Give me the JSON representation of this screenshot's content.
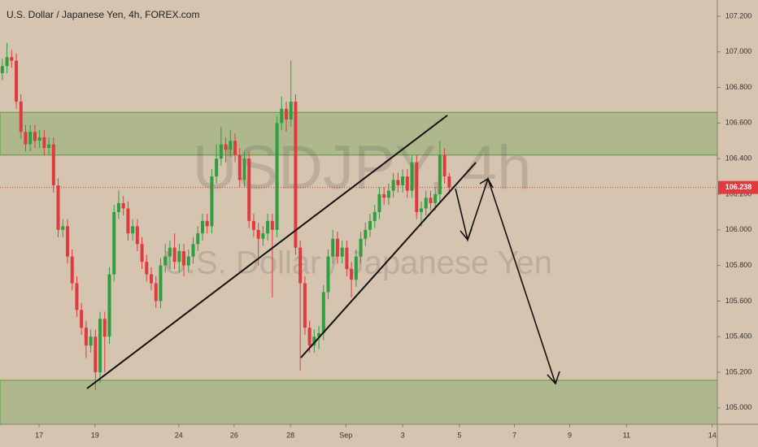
{
  "chart_data": {
    "type": "candlestick",
    "title": "U.S. Dollar / Japanese Yen, 4h, FOREX.com",
    "watermark": "USDJPY, 4h",
    "watermark_subtitle": "U.S. Dollar / Japanese Yen",
    "up_color": "#2e9e3e",
    "down_color": "#e0393e",
    "zone_color": "#5a9a3c",
    "ylim": [
      104.908,
      107.291
    ],
    "yticks": [
      {
        "value": 105.0,
        "label": "105.000"
      },
      {
        "value": 105.2,
        "label": "105.200"
      },
      {
        "value": 105.4,
        "label": "105.400"
      },
      {
        "value": 105.6,
        "label": "105.600"
      },
      {
        "value": 105.8,
        "label": "105.800"
      },
      {
        "value": 106.0,
        "label": "106.000"
      },
      {
        "value": 106.2,
        "label": "106.200"
      },
      {
        "value": 106.4,
        "label": "106.400"
      },
      {
        "value": 106.6,
        "label": "106.600"
      },
      {
        "value": 106.8,
        "label": "106.800"
      },
      {
        "value": 107.0,
        "label": "107.000"
      },
      {
        "value": 107.2,
        "label": "107.200"
      }
    ],
    "xlim": [
      -0.5,
      153.6
    ],
    "xticks": [
      {
        "value": 7.9,
        "label": "17"
      },
      {
        "value": 19.9,
        "label": "19"
      },
      {
        "value": 37.9,
        "label": "24"
      },
      {
        "value": 49.8,
        "label": "26"
      },
      {
        "value": 61.9,
        "label": "28"
      },
      {
        "value": 73.8,
        "label": "Sep"
      },
      {
        "value": 86.0,
        "label": "3"
      },
      {
        "value": 98.2,
        "label": "5"
      },
      {
        "value": 110.0,
        "label": "7"
      },
      {
        "value": 121.9,
        "label": "9"
      },
      {
        "value": 134.1,
        "label": "11"
      },
      {
        "value": 152.5,
        "label": "14"
      }
    ],
    "last_price": 106.238,
    "zones": [
      [
        106.42,
        106.66
      ],
      [
        104.908,
        105.155
      ]
    ],
    "ohlc": [
      [
        106.88,
        106.96,
        106.84,
        106.92
      ],
      [
        106.92,
        107.05,
        106.88,
        106.97
      ],
      [
        106.97,
        107.01,
        106.91,
        106.95
      ],
      [
        106.95,
        106.99,
        106.68,
        106.72
      ],
      [
        106.72,
        106.76,
        106.51,
        106.55
      ],
      [
        106.55,
        106.59,
        106.44,
        106.48
      ],
      [
        106.48,
        106.59,
        106.44,
        106.55
      ],
      [
        106.55,
        106.59,
        106.46,
        106.5
      ],
      [
        106.5,
        106.56,
        106.46,
        106.52
      ],
      [
        106.52,
        106.56,
        106.42,
        106.46
      ],
      [
        106.46,
        106.52,
        106.42,
        106.48
      ],
      [
        106.48,
        106.52,
        106.21,
        106.25
      ],
      [
        106.25,
        106.29,
        105.96,
        106.0
      ],
      [
        106.0,
        106.06,
        105.96,
        106.02
      ],
      [
        106.02,
        106.06,
        105.81,
        105.85
      ],
      [
        105.85,
        105.89,
        105.66,
        105.7
      ],
      [
        105.7,
        105.74,
        105.51,
        105.55
      ],
      [
        105.55,
        105.59,
        105.41,
        105.45
      ],
      [
        105.45,
        105.49,
        105.28,
        105.35
      ],
      [
        105.35,
        105.44,
        105.31,
        105.4
      ],
      [
        105.4,
        105.44,
        105.1,
        105.2
      ],
      [
        105.2,
        105.54,
        105.14,
        105.5
      ],
      [
        105.5,
        105.54,
        105.2,
        105.4
      ],
      [
        105.4,
        105.79,
        105.36,
        105.75
      ],
      [
        105.75,
        106.14,
        105.71,
        106.1
      ],
      [
        106.1,
        106.22,
        106.06,
        106.15
      ],
      [
        106.15,
        106.19,
        106.08,
        106.12
      ],
      [
        106.12,
        106.16,
        105.94,
        105.98
      ],
      [
        105.98,
        106.06,
        105.94,
        106.02
      ],
      [
        106.02,
        106.06,
        105.88,
        105.92
      ],
      [
        105.92,
        105.96,
        105.78,
        105.82
      ],
      [
        105.82,
        105.86,
        105.71,
        105.75
      ],
      [
        105.75,
        105.79,
        105.66,
        105.7
      ],
      [
        105.7,
        105.74,
        105.56,
        105.6
      ],
      [
        105.6,
        105.84,
        105.56,
        105.8
      ],
      [
        105.8,
        105.92,
        105.76,
        105.85
      ],
      [
        105.85,
        105.94,
        105.78,
        105.9
      ],
      [
        105.9,
        105.98,
        105.78,
        105.82
      ],
      [
        105.82,
        105.92,
        105.76,
        105.88
      ],
      [
        105.88,
        105.92,
        105.74,
        105.8
      ],
      [
        105.8,
        105.89,
        105.76,
        105.85
      ],
      [
        105.85,
        105.96,
        105.81,
        105.92
      ],
      [
        105.92,
        106.02,
        105.88,
        105.98
      ],
      [
        105.98,
        106.09,
        105.94,
        106.05
      ],
      [
        106.05,
        106.09,
        105.98,
        106.02
      ],
      [
        106.02,
        106.34,
        105.98,
        106.3
      ],
      [
        106.3,
        106.48,
        106.26,
        106.4
      ],
      [
        106.4,
        106.58,
        106.36,
        106.48
      ],
      [
        106.48,
        106.52,
        106.38,
        106.45
      ],
      [
        106.45,
        106.56,
        106.41,
        106.5
      ],
      [
        106.5,
        106.54,
        106.38,
        106.42
      ],
      [
        106.42,
        106.46,
        106.24,
        106.28
      ],
      [
        106.28,
        106.44,
        106.24,
        106.4
      ],
      [
        106.4,
        106.44,
        106.01,
        106.05
      ],
      [
        106.05,
        106.09,
        105.96,
        106.0
      ],
      [
        106.0,
        106.04,
        105.8,
        105.95
      ],
      [
        105.95,
        106.02,
        105.91,
        105.98
      ],
      [
        105.98,
        106.09,
        105.94,
        106.05
      ],
      [
        106.05,
        106.09,
        105.62,
        106.0
      ],
      [
        106.0,
        106.64,
        105.96,
        106.6
      ],
      [
        106.6,
        106.75,
        106.56,
        106.68
      ],
      [
        106.68,
        106.72,
        106.55,
        106.62
      ],
      [
        106.62,
        106.95,
        106.58,
        106.72
      ],
      [
        106.72,
        106.76,
        105.86,
        105.9
      ],
      [
        105.9,
        105.94,
        105.21,
        105.7
      ],
      [
        105.7,
        105.74,
        105.41,
        105.45
      ],
      [
        105.45,
        105.49,
        105.31,
        105.35
      ],
      [
        105.35,
        105.44,
        105.31,
        105.4
      ],
      [
        105.4,
        105.46,
        105.33,
        105.42
      ],
      [
        105.42,
        105.69,
        105.38,
        105.65
      ],
      [
        105.65,
        105.89,
        105.61,
        105.85
      ],
      [
        105.85,
        106.0,
        105.81,
        105.95
      ],
      [
        105.95,
        105.99,
        105.81,
        105.85
      ],
      [
        105.85,
        105.94,
        105.81,
        105.9
      ],
      [
        105.9,
        105.94,
        105.74,
        105.78
      ],
      [
        105.78,
        105.82,
        105.62,
        105.72
      ],
      [
        105.72,
        105.89,
        105.68,
        105.85
      ],
      [
        105.85,
        105.99,
        105.81,
        105.95
      ],
      [
        105.95,
        106.04,
        105.91,
        106.0
      ],
      [
        106.0,
        106.09,
        105.96,
        106.05
      ],
      [
        106.05,
        106.14,
        106.01,
        106.1
      ],
      [
        106.1,
        106.24,
        106.06,
        106.2
      ],
      [
        106.2,
        106.24,
        106.14,
        106.18
      ],
      [
        106.18,
        106.26,
        106.14,
        106.22
      ],
      [
        106.22,
        106.32,
        106.18,
        106.28
      ],
      [
        106.28,
        106.32,
        106.21,
        106.25
      ],
      [
        106.25,
        106.34,
        106.21,
        106.3
      ],
      [
        106.3,
        106.34,
        106.18,
        106.22
      ],
      [
        106.22,
        106.42,
        106.18,
        106.38
      ],
      [
        106.38,
        106.42,
        106.06,
        106.1
      ],
      [
        106.1,
        106.16,
        106.02,
        106.12
      ],
      [
        106.12,
        106.22,
        106.08,
        106.18
      ],
      [
        106.18,
        106.22,
        106.11,
        106.15
      ],
      [
        106.15,
        106.24,
        106.11,
        106.2
      ],
      [
        106.2,
        106.5,
        106.16,
        106.42
      ],
      [
        106.42,
        106.46,
        106.26,
        106.3
      ],
      [
        106.3,
        106.32,
        106.2,
        106.238
      ]
    ]
  }
}
